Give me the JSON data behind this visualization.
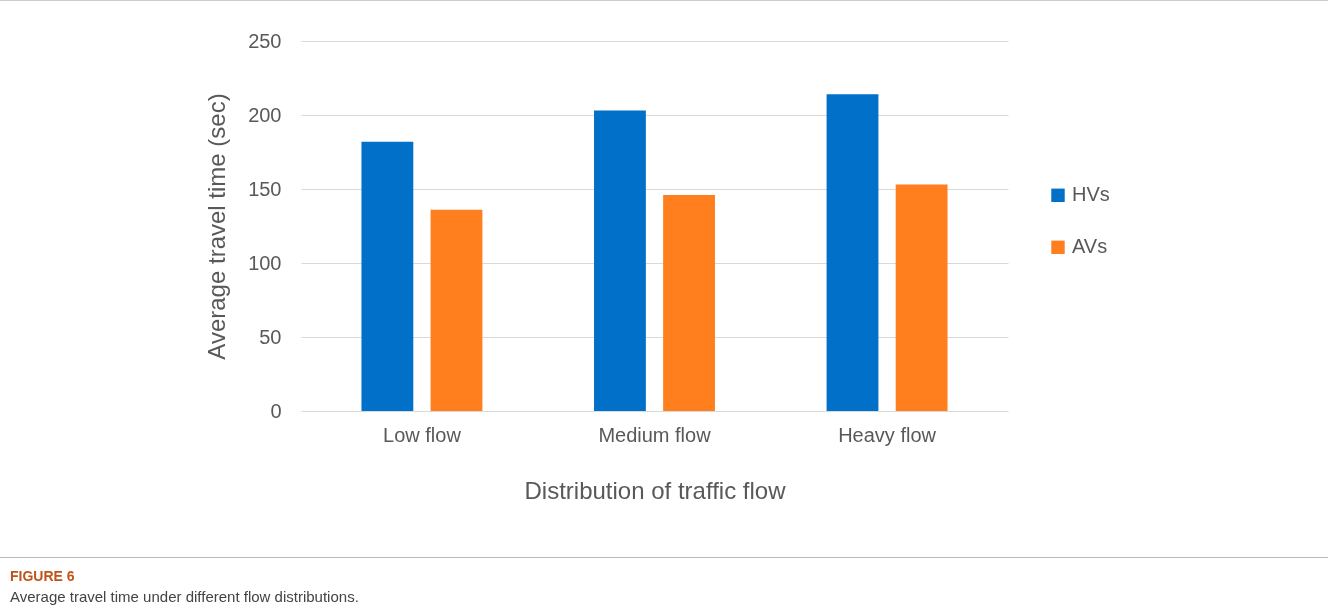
{
  "chart_data": {
    "type": "bar",
    "xlabel": "Distribution of traffic flow",
    "ylabel": "Average travel time (sec)",
    "categories": [
      "Low flow",
      "Medium flow",
      "Heavy flow"
    ],
    "series": [
      {
        "name": "HVs",
        "color": "#0070c8",
        "values": [
          182,
          203,
          214
        ]
      },
      {
        "name": "AVs",
        "color": "#ff7f1f",
        "values": [
          136,
          146,
          153
        ]
      }
    ],
    "ylim": [
      0,
      250
    ],
    "yticks": [
      0,
      50,
      100,
      150,
      200,
      250
    ],
    "grid": "y",
    "legend": "right",
    "annotations": [
      "FIGURE 6",
      "Average travel time under different flow distributions."
    ]
  }
}
